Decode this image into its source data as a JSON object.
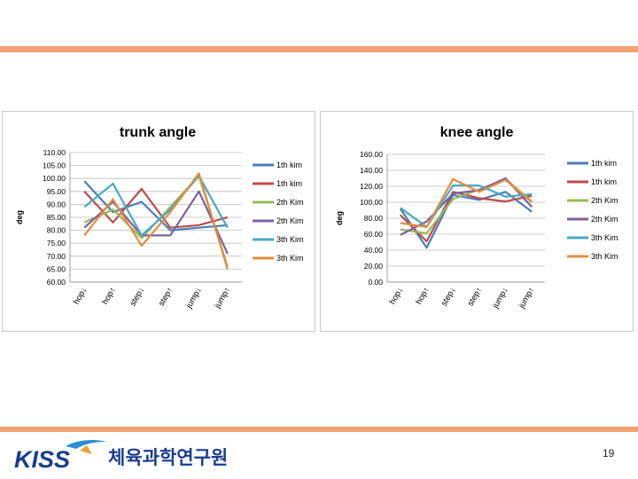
{
  "slide": {
    "page_number": "19",
    "org_logo_text": "KISS",
    "org_name": "체육과학연구원",
    "accent_color": "#f4a273",
    "brand_color": "#1a3d8f"
  },
  "chart_data": [
    {
      "type": "line",
      "title": "trunk angle",
      "ylabel": "deg",
      "xlabel": "",
      "ylim": [
        60,
        110
      ],
      "yticks": [
        "60.00",
        "65.00",
        "70.00",
        "75.00",
        "80.00",
        "85.00",
        "90.00",
        "95.00",
        "100.00",
        "105.00",
        "110.00"
      ],
      "categories": [
        "hop↓",
        "hop↑",
        "step↓",
        "step↑",
        "jump↓",
        "jump↑"
      ],
      "legend_position": "right",
      "grid": true,
      "series": [
        {
          "name": "1th kim",
          "color": "#4a7ebb",
          "values": [
            99,
            87,
            91,
            80,
            81,
            82
          ]
        },
        {
          "name": "1th kim",
          "color": "#be4b48",
          "values": [
            95,
            83,
            96,
            81,
            82,
            85
          ]
        },
        {
          "name": "2th Kim",
          "color": "#98b954",
          "values": [
            83,
            88,
            77,
            89,
            101,
            66
          ]
        },
        {
          "name": "2th Kim",
          "color": "#7d60a0",
          "values": [
            81,
            91,
            78,
            78,
            95,
            71
          ]
        },
        {
          "name": "3th Kim",
          "color": "#46aac5",
          "values": [
            89,
            98,
            78,
            88,
            101,
            81
          ]
        },
        {
          "name": "3th Kim",
          "color": "#e38d3c",
          "values": [
            78,
            92,
            74,
            87,
            102,
            65
          ]
        }
      ]
    },
    {
      "type": "line",
      "title": "knee angle",
      "ylabel": "deg",
      "xlabel": "",
      "ylim": [
        0,
        160
      ],
      "yticks": [
        "0.00",
        "20.00",
        "40.00",
        "60.00",
        "80.00",
        "100.00",
        "120.00",
        "140.00",
        "160.00"
      ],
      "categories": [
        "hop↓",
        "hop↑",
        "step↓",
        "step↑",
        "jump↓",
        "jump↑"
      ],
      "legend_position": "right",
      "grid": true,
      "series": [
        {
          "name": "1th kim",
          "color": "#4a7ebb",
          "values": [
            92,
            43,
            109,
            103,
            113,
            88
          ]
        },
        {
          "name": "1th kim",
          "color": "#be4b48",
          "values": [
            84,
            51,
            113,
            105,
            101,
            108
          ]
        },
        {
          "name": "2th Kim",
          "color": "#98b954",
          "values": [
            66,
            61,
            104,
            116,
            129,
            101
          ]
        },
        {
          "name": "2th Kim",
          "color": "#7d60a0",
          "values": [
            59,
            76,
            111,
            115,
            130,
            94
          ]
        },
        {
          "name": "3th Kim",
          "color": "#46aac5",
          "values": [
            93,
            69,
            121,
            121,
            107,
            110
          ]
        },
        {
          "name": "3th Kim",
          "color": "#e38d3c",
          "values": [
            74,
            69,
            129,
            113,
            128,
            100
          ]
        }
      ]
    }
  ]
}
